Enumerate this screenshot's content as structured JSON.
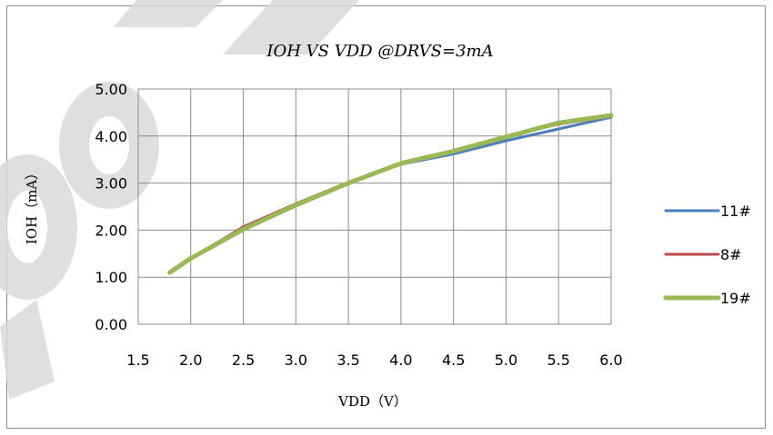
{
  "chart_data": {
    "type": "line",
    "title": "IOH VS VDD @DRVS=3mA",
    "xlabel": "VDD（V）",
    "ylabel": "IOH（mA）",
    "x_ticks": [
      "1.5",
      "2.0",
      "2.5",
      "3.0",
      "3.5",
      "4.0",
      "4.5",
      "5.0",
      "5.5",
      "6.0"
    ],
    "y_ticks": [
      "0.00",
      "1.00",
      "2.00",
      "3.00",
      "4.00",
      "5.00"
    ],
    "xlim": [
      1.5,
      6.0
    ],
    "ylim": [
      0,
      5
    ],
    "grid": true,
    "legend_position": "right",
    "series": [
      {
        "name": "11#",
        "color": "#4a7ebb",
        "x": [
          1.8,
          2.0,
          2.5,
          3.0,
          3.5,
          4.0,
          4.5,
          5.0,
          5.5,
          6.0
        ],
        "y": [
          1.1,
          1.38,
          2.0,
          2.52,
          3.0,
          3.4,
          3.62,
          3.9,
          4.15,
          4.4
        ]
      },
      {
        "name": "8#",
        "color": "#be4b48",
        "x": [
          1.8,
          2.0,
          2.5,
          3.0,
          3.5,
          4.0,
          4.5,
          5.0,
          5.5,
          6.0
        ],
        "y": [
          1.1,
          1.4,
          2.07,
          2.56,
          3.02,
          3.4,
          3.67,
          4.0,
          4.25,
          4.42
        ]
      },
      {
        "name": "19#",
        "color": "#98b954",
        "x": [
          1.8,
          2.0,
          2.5,
          3.0,
          3.5,
          4.0,
          4.5,
          5.0,
          5.5,
          6.0
        ],
        "y": [
          1.1,
          1.4,
          2.02,
          2.53,
          3.0,
          3.42,
          3.68,
          3.98,
          4.28,
          4.44
        ]
      }
    ]
  }
}
